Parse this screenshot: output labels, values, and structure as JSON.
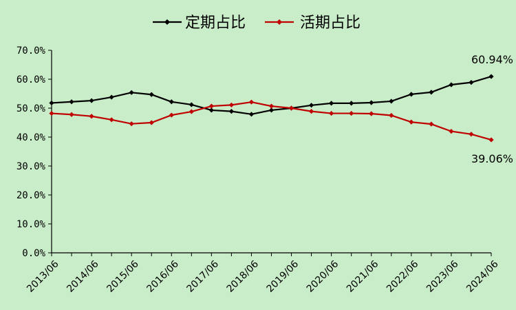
{
  "chart_data": {
    "type": "line",
    "title": "",
    "xlabel": "",
    "ylabel": "",
    "ylim": [
      0,
      70
    ],
    "y_ticks": [
      "0.0%",
      "10.0%",
      "20.0%",
      "30.0%",
      "40.0%",
      "50.0%",
      "60.0%",
      "70.0%"
    ],
    "x_tick_labels": [
      "2013/06",
      "2014/06",
      "2015/06",
      "2016/06",
      "2017/06",
      "2018/06",
      "2019/06",
      "2020/06",
      "2021/06",
      "2022/06",
      "2023/06",
      "2024/06"
    ],
    "grid": false,
    "legend_position": "top-center",
    "x": [
      "2013/06",
      "2013/12",
      "2014/06",
      "2014/12",
      "2015/06",
      "2015/12",
      "2016/06",
      "2016/12",
      "2017/06",
      "2017/12",
      "2018/06",
      "2018/12",
      "2019/06",
      "2019/12",
      "2020/06",
      "2020/12",
      "2021/06",
      "2021/12",
      "2022/06",
      "2022/12",
      "2023/06",
      "2023/12",
      "2024/06"
    ],
    "series": [
      {
        "name": "定期占比",
        "color": "#000000",
        "values": [
          51.8,
          52.2,
          52.6,
          53.8,
          55.4,
          54.7,
          52.2,
          51.2,
          49.3,
          48.9,
          47.9,
          49.3,
          50.0,
          51.0,
          51.7,
          51.7,
          51.9,
          52.4,
          54.8,
          55.5,
          58.1,
          58.9,
          60.94
        ],
        "end_label": "60.94%"
      },
      {
        "name": "活期占比",
        "color": "#c00000",
        "values": [
          48.2,
          47.8,
          47.2,
          46.0,
          44.6,
          45.0,
          47.6,
          48.8,
          50.7,
          51.1,
          52.1,
          50.7,
          50.0,
          48.9,
          48.2,
          48.2,
          48.1,
          47.5,
          45.2,
          44.5,
          42.0,
          41.0,
          39.06
        ],
        "end_label": "39.06%"
      }
    ]
  }
}
